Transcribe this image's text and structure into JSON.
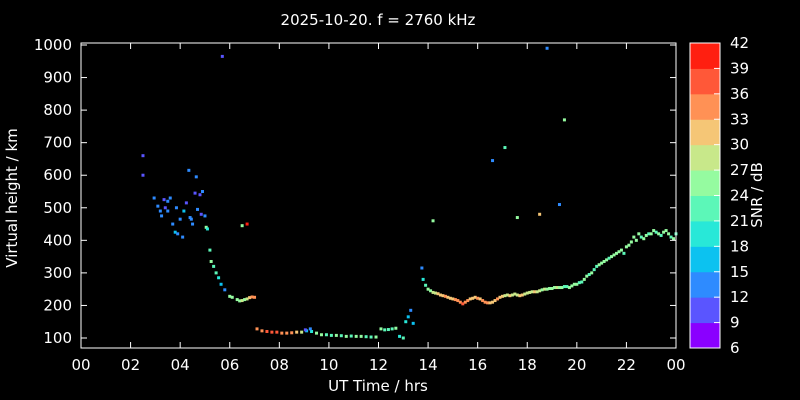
{
  "chart_data": {
    "type": "scatter",
    "title": "2025-10-20. f = 2760 kHz",
    "xlabel": "UT Time / hrs",
    "ylabel": "Virtual height / km",
    "xlim": [
      0,
      24
    ],
    "ylim": [
      80,
      1000
    ],
    "xtick_labels": [
      "00",
      "02",
      "04",
      "06",
      "08",
      "10",
      "12",
      "14",
      "16",
      "18",
      "20",
      "22",
      "00"
    ],
    "ytick_labels": [
      "100",
      "200",
      "300",
      "400",
      "500",
      "600",
      "700",
      "800",
      "900",
      "1000"
    ],
    "colorbar": {
      "label": "SNR / dB",
      "range": [
        6,
        42
      ],
      "tick_labels": [
        "6",
        "9",
        "12",
        "15",
        "18",
        "21",
        "24",
        "27",
        "30",
        "33",
        "36",
        "39",
        "42"
      ],
      "colors": [
        "#8a00ff",
        "#5a55ff",
        "#2e8bff",
        "#0cc2f0",
        "#28e8d8",
        "#5cf7b8",
        "#95fba0",
        "#c8e88a",
        "#f5c676",
        "#ff9155",
        "#ff5838",
        "#ff1f10"
      ]
    },
    "series": [
      {
        "x": [
          2.5,
          2.5,
          2.95,
          3.1,
          3.2,
          3.25,
          3.35,
          3.4,
          3.5,
          3.5,
          3.6,
          3.7,
          3.8,
          3.85,
          3.9,
          4.0,
          4.1,
          4.15,
          4.25,
          4.35,
          4.4,
          4.45,
          4.5,
          4.6,
          4.65,
          4.7,
          4.8,
          4.85,
          4.9,
          5.0,
          5.05,
          5.1,
          5.2,
          5.7,
          6.1,
          6.5,
          6.7
        ],
        "y": [
          660,
          600,
          530,
          505,
          490,
          475,
          525,
          500,
          520,
          490,
          530,
          450,
          425,
          500,
          420,
          465,
          410,
          490,
          515,
          615,
          470,
          465,
          450,
          545,
          595,
          495,
          540,
          480,
          550,
          475,
          440,
          435,
          370,
          965,
          225,
          445,
          450
        ],
        "snr": [
          9,
          10,
          12,
          14,
          13,
          12,
          11,
          10,
          12,
          13,
          14,
          13,
          15,
          12,
          14,
          12,
          13,
          15,
          11,
          12,
          13,
          12,
          14,
          11,
          12,
          13,
          11,
          10,
          12,
          13,
          24,
          20,
          22,
          10,
          24,
          24,
          40
        ]
      },
      {
        "x": [
          5.25,
          5.35,
          5.45,
          5.55,
          5.65,
          5.8,
          6.0,
          6.3,
          6.4,
          6.5,
          6.6,
          6.7,
          6.8,
          6.9,
          7.0
        ],
        "y": [
          335,
          320,
          300,
          285,
          265,
          248,
          228,
          218,
          214,
          215,
          218,
          220,
          224,
          226,
          225
        ],
        "snr": [
          24,
          22,
          21,
          18,
          16,
          13,
          24,
          26,
          25,
          27,
          26,
          28,
          30,
          33,
          34
        ]
      },
      {
        "x": [
          7.1,
          7.3,
          7.5,
          7.7,
          7.9,
          8.1,
          8.3,
          8.5,
          8.7,
          8.9,
          9.1,
          9.3,
          9.5,
          9.7,
          9.9,
          10.1,
          10.3,
          10.5,
          10.7,
          10.9,
          11.1,
          11.3,
          11.5,
          11.7,
          11.9
        ],
        "y": [
          128,
          122,
          120,
          118,
          118,
          115,
          115,
          116,
          118,
          118,
          122,
          120,
          115,
          110,
          110,
          108,
          108,
          107,
          105,
          106,
          105,
          105,
          104,
          103,
          103
        ],
        "snr": [
          33,
          35,
          36,
          37,
          36,
          35,
          34,
          33,
          30,
          27,
          15,
          18,
          24,
          26,
          23,
          22,
          25,
          23,
          24,
          22,
          25,
          24,
          21,
          23,
          24
        ]
      },
      {
        "x": [
          9.05,
          9.25,
          12.1,
          12.25,
          12.4,
          12.55,
          12.7,
          12.85,
          13.0,
          13.1,
          13.2,
          13.3,
          13.4
        ],
        "y": [
          125,
          128,
          128,
          125,
          126,
          128,
          130,
          105,
          100,
          150,
          165,
          185,
          145
        ],
        "snr": [
          11,
          12,
          24,
          22,
          23,
          22,
          24,
          20,
          21,
          19,
          17,
          14,
          15
        ]
      },
      {
        "x": [
          13.75,
          13.8,
          13.9,
          14.0,
          14.1,
          14.2,
          14.3,
          14.4,
          14.5,
          14.6,
          14.7,
          14.8,
          14.9,
          15.0,
          15.1,
          15.2,
          15.3,
          15.4,
          15.5,
          15.6,
          15.7,
          15.8,
          15.9,
          16.0,
          16.1,
          16.2,
          16.3,
          16.4,
          16.5,
          16.6,
          16.7,
          16.8,
          16.9,
          17.0,
          17.1,
          17.2,
          17.3,
          17.4,
          17.5,
          17.6,
          17.7,
          17.8,
          17.9,
          18.0,
          18.1,
          18.2,
          18.3,
          18.4,
          18.5,
          18.6,
          18.7,
          18.8,
          18.9,
          19.0,
          19.1,
          19.2,
          19.3,
          19.4,
          19.5,
          19.6,
          19.7
        ],
        "y": [
          315,
          280,
          262,
          250,
          245,
          240,
          238,
          236,
          232,
          230,
          228,
          225,
          222,
          220,
          218,
          215,
          210,
          205,
          210,
          215,
          220,
          222,
          225,
          222,
          220,
          215,
          210,
          208,
          208,
          210,
          215,
          220,
          225,
          228,
          230,
          232,
          230,
          232,
          235,
          232,
          230,
          232,
          235,
          238,
          240,
          242,
          242,
          242,
          245,
          248,
          250,
          250,
          252,
          252,
          255,
          255,
          255,
          255,
          258,
          258,
          255
        ],
        "snr": [
          12,
          20,
          22,
          24,
          26,
          27,
          29,
          31,
          30,
          32,
          33,
          31,
          30,
          32,
          34,
          33,
          35,
          36,
          34,
          33,
          32,
          31,
          30,
          33,
          32,
          34,
          35,
          33,
          32,
          31,
          30,
          33,
          31,
          30,
          28,
          29,
          30,
          29,
          28,
          29,
          30,
          31,
          29,
          28,
          27,
          29,
          30,
          28,
          27,
          26,
          28,
          26,
          25,
          24,
          26,
          27,
          25,
          24,
          23,
          22,
          24
        ]
      },
      {
        "x": [
          19.8,
          19.9,
          20.0,
          20.1,
          20.2,
          20.3,
          20.4,
          20.5,
          20.6,
          20.7,
          20.8,
          20.9,
          21.0,
          21.1,
          21.2,
          21.3,
          21.4,
          21.5,
          21.6,
          21.7,
          21.8,
          21.9,
          22.0,
          22.1,
          22.2,
          22.3,
          22.4,
          22.5,
          22.6,
          22.7,
          22.8,
          22.9,
          23.0,
          23.1,
          23.2,
          23.3,
          23.4,
          23.5,
          23.6,
          23.7,
          23.8,
          23.9,
          24.0
        ],
        "y": [
          260,
          265,
          265,
          270,
          272,
          280,
          290,
          295,
          300,
          310,
          320,
          325,
          330,
          335,
          340,
          345,
          350,
          355,
          360,
          365,
          370,
          360,
          380,
          385,
          395,
          410,
          400,
          420,
          410,
          405,
          415,
          420,
          420,
          430,
          425,
          420,
          415,
          425,
          430,
          420,
          410,
          405,
          420
        ],
        "snr": [
          24,
          25,
          24,
          23,
          22,
          24,
          25,
          23,
          24,
          22,
          23,
          24,
          25,
          24,
          26,
          23,
          24,
          25,
          24,
          26,
          25,
          23,
          24,
          25,
          26,
          24,
          25,
          26,
          23,
          25,
          24,
          23,
          24,
          25,
          22,
          24,
          23,
          25,
          24,
          25,
          23,
          24,
          22
        ]
      },
      {
        "x": [
          14.2,
          16.6,
          17.1,
          17.6,
          18.5,
          18.8,
          19.3,
          19.5
        ],
        "y": [
          460,
          645,
          685,
          470,
          480,
          990,
          510,
          770
        ],
        "snr": [
          26,
          12,
          22,
          26,
          32,
          12,
          12,
          26
        ]
      }
    ]
  }
}
